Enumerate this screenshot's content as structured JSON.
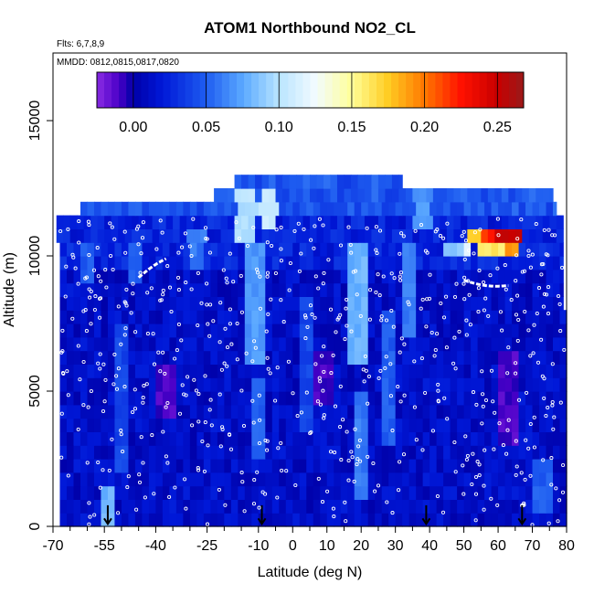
{
  "chart_data": {
    "type": "heatmap",
    "title": "ATOM1 Northbound NO2_CL",
    "flights_label": "Flts: 6,7,8,9",
    "dates_label": "MMDD: 0812,0815,0817,0820",
    "xlabel": "Latitude (deg N)",
    "ylabel": "Altitude (m)",
    "xlim": [
      -70,
      80
    ],
    "ylim": [
      0,
      17500
    ],
    "x_ticks": [
      -70,
      -55,
      -40,
      -25,
      -10,
      0,
      10,
      20,
      30,
      40,
      50,
      60,
      70,
      80
    ],
    "x_tick_labels": [
      "-70",
      "-55",
      "-40",
      "-25",
      "-10",
      "0",
      "10",
      "20",
      "30",
      "40",
      "50",
      "60",
      "70",
      "80"
    ],
    "x_minor_ticks": [
      -65,
      -60,
      -50,
      -45,
      -35,
      -30,
      -20,
      -15,
      -5,
      5,
      15,
      25,
      35,
      45,
      55,
      65,
      75
    ],
    "y_ticks": [
      0,
      5000,
      10000,
      15000
    ],
    "y_tick_labels": [
      "0",
      "5000",
      "10000",
      "15000"
    ],
    "colorbar": {
      "range": [
        -0.025,
        0.268
      ],
      "ticks": [
        0.0,
        0.05,
        0.1,
        0.15,
        0.2,
        0.25
      ],
      "tick_labels": [
        "0.00",
        "0.05",
        "0.10",
        "0.15",
        "0.20",
        "0.25"
      ],
      "stops": [
        {
          "value": -0.025,
          "color": "#8a2be2"
        },
        {
          "value": -0.01,
          "color": "#4b00c8"
        },
        {
          "value": 0.0,
          "color": "#0000a8"
        },
        {
          "value": 0.02,
          "color": "#0018d8"
        },
        {
          "value": 0.05,
          "color": "#1e5cf0"
        },
        {
          "value": 0.075,
          "color": "#5aa8ff"
        },
        {
          "value": 0.1,
          "color": "#b8e4ff"
        },
        {
          "value": 0.125,
          "color": "#f2fbff"
        },
        {
          "value": 0.15,
          "color": "#ffff99"
        },
        {
          "value": 0.175,
          "color": "#ffcc22"
        },
        {
          "value": 0.2,
          "color": "#ff7700"
        },
        {
          "value": 0.225,
          "color": "#ff1100"
        },
        {
          "value": 0.25,
          "color": "#c80000"
        },
        {
          "value": 0.268,
          "color": "#9a1a1a"
        }
      ]
    },
    "background_value": 0.012,
    "altitude_bins": [
      0,
      500,
      1000,
      1500,
      2000,
      2500,
      3000,
      3500,
      4000,
      4500,
      5000,
      5500,
      6000,
      6500,
      7000,
      7500,
      8000,
      8500,
      9000,
      9500,
      10000,
      10500,
      11000,
      11500,
      12000,
      12500,
      13000
    ],
    "coverage": [
      {
        "alt": [
          0,
          8000
        ],
        "lat": [
          -68,
          80
        ]
      },
      {
        "alt": [
          8000,
          9500
        ],
        "lat": [
          -68,
          79
        ]
      },
      {
        "alt": [
          9500,
          10500
        ],
        "lat": [
          -68,
          79
        ]
      },
      {
        "alt": [
          10500,
          11500
        ],
        "lat": [
          -69,
          79
        ]
      },
      {
        "alt": [
          11500,
          12000
        ],
        "lat": [
          -62,
          77
        ]
      },
      {
        "alt": [
          12000,
          12500
        ],
        "lat": [
          -23,
          76
        ]
      },
      {
        "alt": [
          12500,
          13000
        ],
        "lat": [
          -17,
          32
        ]
      }
    ],
    "features": [
      {
        "lat": [
          -52,
          -49
        ],
        "alt": [
          2000,
          7500
        ],
        "value": 0.04
      },
      {
        "lat": [
          -56,
          -53
        ],
        "alt": [
          0,
          1500
        ],
        "value": 0.08
      },
      {
        "lat": [
          -48,
          -44
        ],
        "alt": [
          9000,
          10500
        ],
        "value": 0.05
      },
      {
        "lat": [
          -30,
          -26
        ],
        "alt": [
          9500,
          11000
        ],
        "value": 0.06
      },
      {
        "lat": [
          -16,
          -11
        ],
        "alt": [
          10500,
          12500
        ],
        "value": 0.1
      },
      {
        "lat": [
          -13,
          -9
        ],
        "alt": [
          6000,
          10500
        ],
        "value": 0.07
      },
      {
        "lat": [
          -11,
          -8
        ],
        "alt": [
          2500,
          5500
        ],
        "value": 0.05
      },
      {
        "lat": [
          -9,
          -5
        ],
        "alt": [
          11000,
          12500
        ],
        "value": 0.11
      },
      {
        "lat": [
          2,
          6
        ],
        "alt": [
          3500,
          8500
        ],
        "value": 0.04
      },
      {
        "lat": [
          16,
          21
        ],
        "alt": [
          6000,
          10500
        ],
        "value": 0.08
      },
      {
        "lat": [
          18,
          22
        ],
        "alt": [
          1000,
          5000
        ],
        "value": 0.06
      },
      {
        "lat": [
          26,
          29
        ],
        "alt": [
          3000,
          8000
        ],
        "value": 0.05
      },
      {
        "lat": [
          32,
          35
        ],
        "alt": [
          7000,
          10500
        ],
        "value": 0.06
      },
      {
        "lat": [
          36,
          40
        ],
        "alt": [
          11000,
          12500
        ],
        "value": 0.07
      },
      {
        "lat": [
          48,
          52
        ],
        "alt": [
          10000,
          10500
        ],
        "value": 0.12
      },
      {
        "lat": [
          51,
          55
        ],
        "alt": [
          10500,
          11000
        ],
        "value": 0.17
      },
      {
        "lat": [
          55,
          60
        ],
        "alt": [
          10500,
          11000
        ],
        "value": 0.22
      },
      {
        "lat": [
          60,
          66
        ],
        "alt": [
          10500,
          11000
        ],
        "value": 0.25
      },
      {
        "lat": [
          54,
          62
        ],
        "alt": [
          10000,
          10500
        ],
        "value": 0.16
      },
      {
        "lat": [
          62,
          66
        ],
        "alt": [
          10000,
          10500
        ],
        "value": 0.19
      },
      {
        "lat": [
          44,
          50
        ],
        "alt": [
          10000,
          10500
        ],
        "value": 0.09
      },
      {
        "lat": [
          60,
          66
        ],
        "alt": [
          3000,
          6500
        ],
        "value": -0.01
      },
      {
        "lat": [
          -40,
          -34
        ],
        "alt": [
          4000,
          6000
        ],
        "value": -0.01
      },
      {
        "lat": [
          6,
          12
        ],
        "alt": [
          4500,
          6500
        ],
        "value": -0.008
      },
      {
        "lat": [
          -62,
          -58
        ],
        "alt": [
          9000,
          10500
        ],
        "value": 0.05
      },
      {
        "lat": [
          70,
          76
        ],
        "alt": [
          500,
          2500
        ],
        "value": 0.05
      }
    ],
    "flight_track_arcs": [
      {
        "lat": [
          -45,
          -37
        ],
        "alt": [
          9200,
          9900
        ]
      },
      {
        "lat": [
          50,
          63
        ],
        "alt": [
          9100,
          8900
        ]
      }
    ],
    "flight_track_points_note": "white open circles mark the sampled flight track",
    "profile_arrows_lat": [
      -54,
      -9,
      39,
      67
    ]
  }
}
